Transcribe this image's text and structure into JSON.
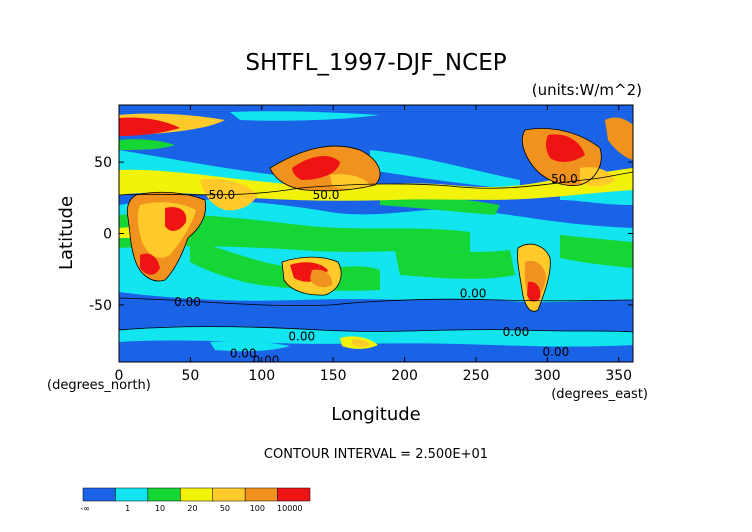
{
  "chart_data": {
    "type": "heatmap",
    "title": "SHTFL_1997-DJF_NCEP",
    "units_label": "(units:W/m^2)",
    "xlabel": "Longitude",
    "ylabel": "Latitude",
    "x_unit_label": "(degrees_east)",
    "y_unit_label": "(degrees_north)",
    "xlim": [
      0,
      360
    ],
    "ylim": [
      -90,
      90
    ],
    "x_ticks": [
      0,
      50,
      100,
      150,
      200,
      250,
      300,
      350
    ],
    "y_ticks": [
      -50,
      0,
      50
    ],
    "contour_interval_label": "CONTOUR INTERVAL = 2.500E+01",
    "contour_labels": [
      {
        "text": "50.0",
        "lon": 72,
        "lat": 27
      },
      {
        "text": "50.0",
        "lon": 145,
        "lat": 27
      },
      {
        "text": "50.0",
        "lon": 312,
        "lat": 38
      },
      {
        "text": "0.00",
        "lon": 48,
        "lat": -48
      },
      {
        "text": "0.00",
        "lon": 128,
        "lat": -72
      },
      {
        "text": "0.00",
        "lon": 87,
        "lat": -84
      },
      {
        "text": "0.00",
        "lon": 103,
        "lat": -89
      },
      {
        "text": "0.00",
        "lon": 248,
        "lat": -42
      },
      {
        "text": "0.00",
        "lon": 278,
        "lat": -69
      },
      {
        "text": "0.00",
        "lon": 306,
        "lat": -83
      }
    ],
    "colorbar": {
      "colors": [
        "#1a62e6",
        "#12e4f0",
        "#16d636",
        "#f2f20a",
        "#ffca2a",
        "#f2921e",
        "#ef1414"
      ],
      "labels": [
        "-∞",
        "1",
        "10",
        "20",
        "50",
        "100",
        "10000"
      ]
    }
  }
}
